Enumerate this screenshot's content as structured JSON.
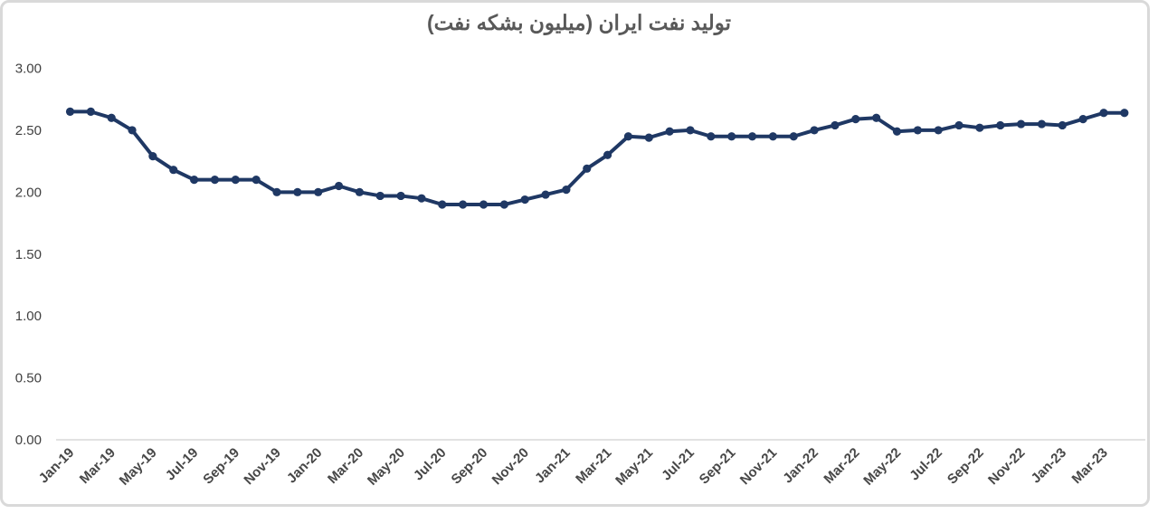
{
  "page": {
    "background_color": "#ffffff",
    "frame_border_color": "#d9d9d9"
  },
  "chart_data": {
    "type": "line",
    "title": "تولید نفت ایران (میلیون بشکه نفت)",
    "title_color": "#595959",
    "line_color": "#1f3864",
    "marker": "circle",
    "marker_color": "#1f3864",
    "axis_label_color": "#404040",
    "axis_line_color": "#d9d9d9",
    "grid": false,
    "legend_position": "none",
    "ylim": [
      0.0,
      3.0
    ],
    "ytick_labels": [
      "3.00",
      "2.50",
      "2.00",
      "1.50",
      "1.00",
      "0.50",
      "0.00"
    ],
    "ytick_values": [
      3.0,
      2.5,
      2.0,
      1.5,
      1.0,
      0.5,
      0.0
    ],
    "x_label_every_n": 2,
    "x": [
      "Jan-19",
      "Feb-19",
      "Mar-19",
      "Apr-19",
      "May-19",
      "Jun-19",
      "Jul-19",
      "Aug-19",
      "Sep-19",
      "Oct-19",
      "Nov-19",
      "Dec-19",
      "Jan-20",
      "Feb-20",
      "Mar-20",
      "Apr-20",
      "May-20",
      "Jun-20",
      "Jul-20",
      "Aug-20",
      "Sep-20",
      "Oct-20",
      "Nov-20",
      "Dec-20",
      "Jan-21",
      "Feb-21",
      "Mar-21",
      "Apr-21",
      "May-21",
      "Jun-21",
      "Jul-21",
      "Aug-21",
      "Sep-21",
      "Oct-21",
      "Nov-21",
      "Dec-21",
      "Jan-22",
      "Feb-22",
      "Mar-22",
      "Apr-22",
      "May-22",
      "Jun-22",
      "Jul-22",
      "Aug-22",
      "Sep-22",
      "Oct-22",
      "Nov-22",
      "Dec-22",
      "Jan-23",
      "Feb-23",
      "Mar-23",
      "Apr-23"
    ],
    "values": [
      2.65,
      2.65,
      2.6,
      2.5,
      2.29,
      2.18,
      2.1,
      2.1,
      2.1,
      2.1,
      2.0,
      2.0,
      2.0,
      2.05,
      2.0,
      1.97,
      1.97,
      1.95,
      1.9,
      1.9,
      1.9,
      1.9,
      1.94,
      1.98,
      2.02,
      2.19,
      2.3,
      2.45,
      2.44,
      2.49,
      2.5,
      2.45,
      2.45,
      2.45,
      2.45,
      2.45,
      2.5,
      2.54,
      2.59,
      2.6,
      2.49,
      2.5,
      2.5,
      2.54,
      2.52,
      2.54,
      2.55,
      2.55,
      2.54,
      2.59,
      2.64,
      2.64
    ]
  }
}
